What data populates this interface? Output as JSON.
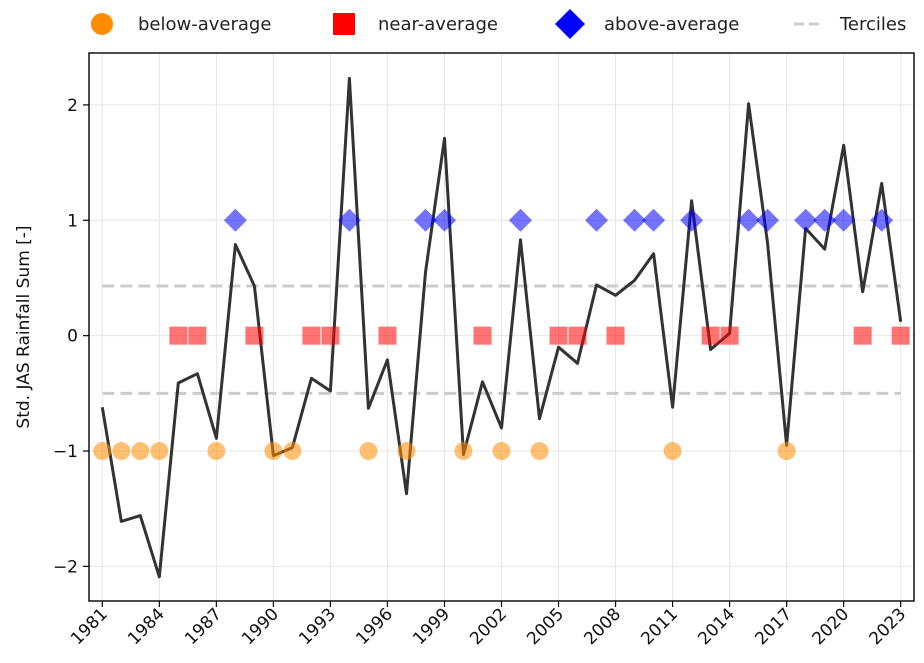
{
  "legend": {
    "below_label": "below-average",
    "near_label": "near-average",
    "above_label": "above-average",
    "terciles_label": "Terciles"
  },
  "colors": {
    "below": "#ff8c00",
    "near": "#ff0000",
    "above": "#0000ff",
    "line": "#333333",
    "terciles": "#cccccc"
  },
  "chart_data": {
    "type": "line",
    "title": "",
    "xlabel": "",
    "ylabel": "Std. JAS Rainfall Sum [-]",
    "xlim": [
      1980.3,
      2023.7
    ],
    "ylim": [
      -2.3,
      2.45
    ],
    "xticks": [
      1981,
      1984,
      1987,
      1990,
      1993,
      1996,
      1999,
      2002,
      2005,
      2008,
      2011,
      2014,
      2017,
      2020,
      2023
    ],
    "yticks": [
      -2,
      -1,
      0,
      1,
      2
    ],
    "grid": true,
    "legend_position": "top, outside plot",
    "terciles": [
      -0.5,
      0.43
    ],
    "series": [
      {
        "name": "Std. JAS Rainfall Sum",
        "x": [
          1981,
          1982,
          1983,
          1984,
          1985,
          1986,
          1987,
          1988,
          1989,
          1990,
          1991,
          1992,
          1993,
          1994,
          1995,
          1996,
          1997,
          1998,
          1999,
          2000,
          2001,
          2002,
          2003,
          2004,
          2005,
          2006,
          2007,
          2008,
          2009,
          2010,
          2011,
          2012,
          2013,
          2014,
          2015,
          2016,
          2017,
          2018,
          2019,
          2020,
          2021,
          2022,
          2023
        ],
        "y": [
          -0.62,
          -1.61,
          -1.56,
          -2.09,
          -0.41,
          -0.33,
          -0.89,
          0.79,
          0.43,
          -1.04,
          -0.97,
          -0.37,
          -0.48,
          2.23,
          -0.63,
          -0.21,
          -1.37,
          0.55,
          1.71,
          -1.03,
          -0.4,
          -0.8,
          0.83,
          -0.72,
          -0.1,
          -0.24,
          0.44,
          0.35,
          0.48,
          0.71,
          -0.62,
          1.17,
          -0.12,
          0.02,
          2.01,
          0.8,
          -0.95,
          0.93,
          0.75,
          1.65,
          0.38,
          1.32,
          0.12
        ]
      }
    ],
    "categories": {
      "below": [
        1981,
        1982,
        1983,
        1984,
        1987,
        1990,
        1991,
        1995,
        1997,
        2000,
        2002,
        2004,
        2011,
        2017
      ],
      "near": [
        1985,
        1986,
        1989,
        1992,
        1993,
        1996,
        2001,
        2005,
        2006,
        2008,
        2013,
        2014,
        2021,
        2023
      ],
      "above": [
        1988,
        1994,
        1998,
        1999,
        2003,
        2007,
        2009,
        2010,
        2012,
        2015,
        2016,
        2018,
        2019,
        2020,
        2022
      ]
    },
    "category_levels": {
      "below": -1,
      "near": 0,
      "above": 1
    }
  }
}
